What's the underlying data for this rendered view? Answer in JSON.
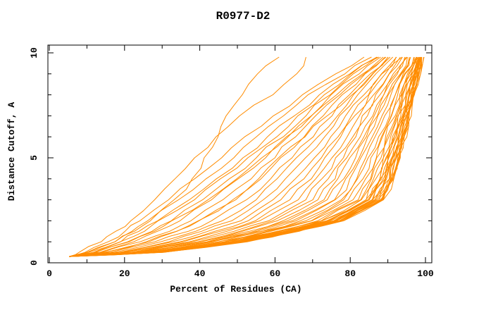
{
  "window": {
    "background": "#ffffff"
  },
  "chart_data": {
    "type": "line",
    "title": "R0977-D2",
    "xlabel": "Percent of Residues (CA)",
    "ylabel": "Distance Cutoff, A",
    "xlim": [
      0,
      100
    ],
    "ylim": [
      0,
      10
    ],
    "xticks_major": [
      0,
      20,
      40,
      60,
      80,
      100
    ],
    "xticks_minor": [
      10,
      30,
      50,
      70,
      90
    ],
    "yticks_major": [
      0,
      5,
      10
    ],
    "yticks_minor": [
      1,
      2,
      3,
      4,
      6,
      7,
      8,
      9
    ],
    "grid": false,
    "legend": "none",
    "curve_color": "#ff8c00",
    "axis_color": "#000000",
    "n_curves": 53,
    "series_note": "Unlabeled per-model GDT curves: percent of CA residues (x) under each distance cutoff (y). All curves start at a common tip near (5.3, 0.3) and end near cutoff 9.8.",
    "cutoffs": [
      0.3,
      0.5,
      1,
      1.5,
      2,
      3,
      4,
      5,
      6,
      7,
      8,
      9,
      9.8
    ],
    "outlier_curves": [
      [
        5.3,
        10,
        17,
        22.5,
        27,
        33.5,
        38,
        41.5,
        44.5,
        47.5,
        51,
        55.5,
        60.5
      ],
      [
        5.3,
        8.5,
        13.5,
        18,
        22,
        28,
        33.5,
        39,
        44.5,
        50.5,
        59,
        65.5,
        68.6
      ]
    ],
    "mid_curves": [
      [
        5.3,
        10,
        17,
        22,
        26.5,
        34.5,
        42,
        49,
        55.5,
        62,
        69,
        78,
        85.5
      ],
      [
        5.3,
        9.5,
        15.5,
        20,
        24,
        31.5,
        38.5,
        45.5,
        52.5,
        59.5,
        67,
        76.5,
        84
      ],
      [
        5.3,
        11.5,
        18.5,
        24,
        28.5,
        37,
        45,
        52,
        58.5,
        65,
        72,
        80,
        87
      ],
      [
        5.3,
        12.5,
        21,
        27.5,
        33,
        42,
        50,
        57,
        63.5,
        70,
        76.5,
        83.5,
        89.5
      ],
      [
        5.3,
        15,
        26,
        33.5,
        40,
        49.5,
        55.5,
        61,
        67.5,
        74,
        80.5,
        86.5,
        90.3
      ]
    ],
    "bundle": {
      "envelope_worst": [
        5.3,
        11,
        19,
        25,
        29.5,
        38,
        46,
        53,
        60,
        66.5,
        73,
        80.5,
        87
      ],
      "envelope_best": [
        5.3,
        30,
        52,
        66,
        78,
        89,
        91.5,
        93,
        94.5,
        95.8,
        97,
        98.2,
        99.3
      ],
      "t_values": [
        0,
        0.05,
        0.1,
        0.16,
        0.22,
        0.28,
        0.33,
        0.38,
        0.43,
        0.47,
        0.51,
        0.55,
        0.585,
        0.62,
        0.65,
        0.68,
        0.705,
        0.73,
        0.755,
        0.78,
        0.8,
        0.82,
        0.84,
        0.855,
        0.87,
        0.885,
        0.898,
        0.91,
        0.92,
        0.925,
        0.93,
        0.94,
        0.945,
        0.948,
        0.956,
        0.963,
        0.965,
        0.97,
        0.976,
        0.982,
        0.985,
        0.987,
        0.991,
        0.994,
        0.997,
        1.0
      ]
    }
  }
}
